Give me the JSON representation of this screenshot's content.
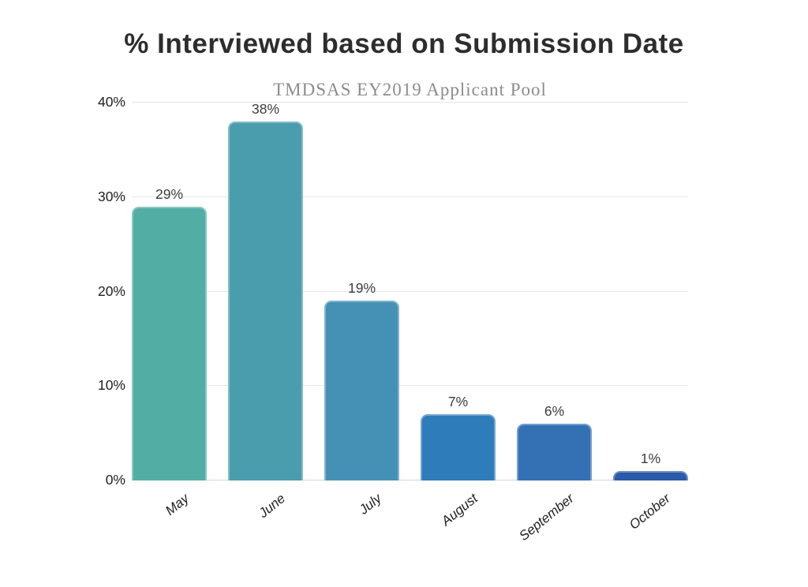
{
  "chart_data": {
    "type": "bar",
    "title": "% Interviewed based on Submission Date",
    "subtitle": "TMDSAS EY2019 Applicant Pool",
    "categories": [
      "May",
      "June",
      "July",
      "August",
      "September",
      "October"
    ],
    "values": [
      29,
      38,
      19,
      7,
      6,
      1
    ],
    "data_labels": [
      "29%",
      "38%",
      "19%",
      "7%",
      "6%",
      "1%"
    ],
    "bar_colors": [
      "#52AEA4",
      "#4A9DAC",
      "#4591B6",
      "#2F7CBB",
      "#3470B4",
      "#2B5AA6"
    ],
    "xlabel": "",
    "ylabel": "",
    "ylim": [
      0,
      40
    ],
    "yticks": [
      {
        "value": 0,
        "label": "0%"
      },
      {
        "value": 10,
        "label": "10%"
      },
      {
        "value": 20,
        "label": "20%"
      },
      {
        "value": 30,
        "label": "30%"
      },
      {
        "value": 40,
        "label": "40%"
      }
    ],
    "grid": "horizontal",
    "legend": "none",
    "colors": {
      "background": "#ffffff",
      "title": "#2d2d2d",
      "subtitle": "#8c8c8c",
      "gridline": "#e7e7e7",
      "axis_line": "#d6d6d6",
      "tick_label": "#1f1f1f",
      "value_label": "#3d3d3d"
    }
  }
}
